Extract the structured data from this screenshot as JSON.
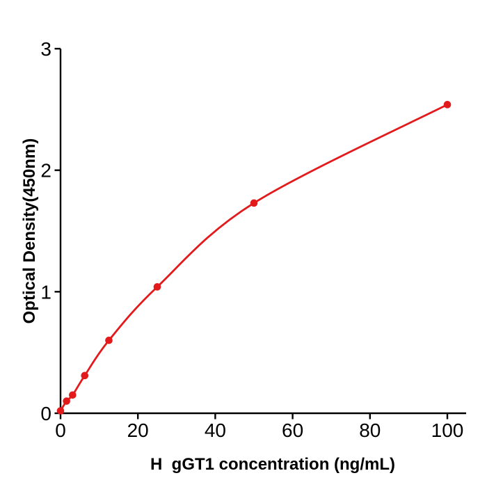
{
  "chart_data": {
    "type": "line",
    "title": "",
    "xlabel": "H  gGT1 concentration (ng/mL)",
    "ylabel": "Optical Density(450nm)",
    "x": [
      0,
      1.56,
      3.12,
      6.25,
      12.5,
      25,
      50,
      100
    ],
    "y": [
      0.02,
      0.1,
      0.15,
      0.31,
      0.6,
      1.04,
      1.73,
      2.54
    ],
    "xticks": [
      0,
      20,
      40,
      60,
      80,
      100
    ],
    "yticks": [
      0,
      1,
      2,
      3
    ],
    "xlim": [
      0,
      105
    ],
    "ylim": [
      0,
      3
    ],
    "grid": false,
    "legend": "none",
    "line_color": "#e31a1c",
    "marker": "circle",
    "marker_color": "#e31a1c",
    "axis_color": "#000000",
    "background": "#ffffff"
  }
}
